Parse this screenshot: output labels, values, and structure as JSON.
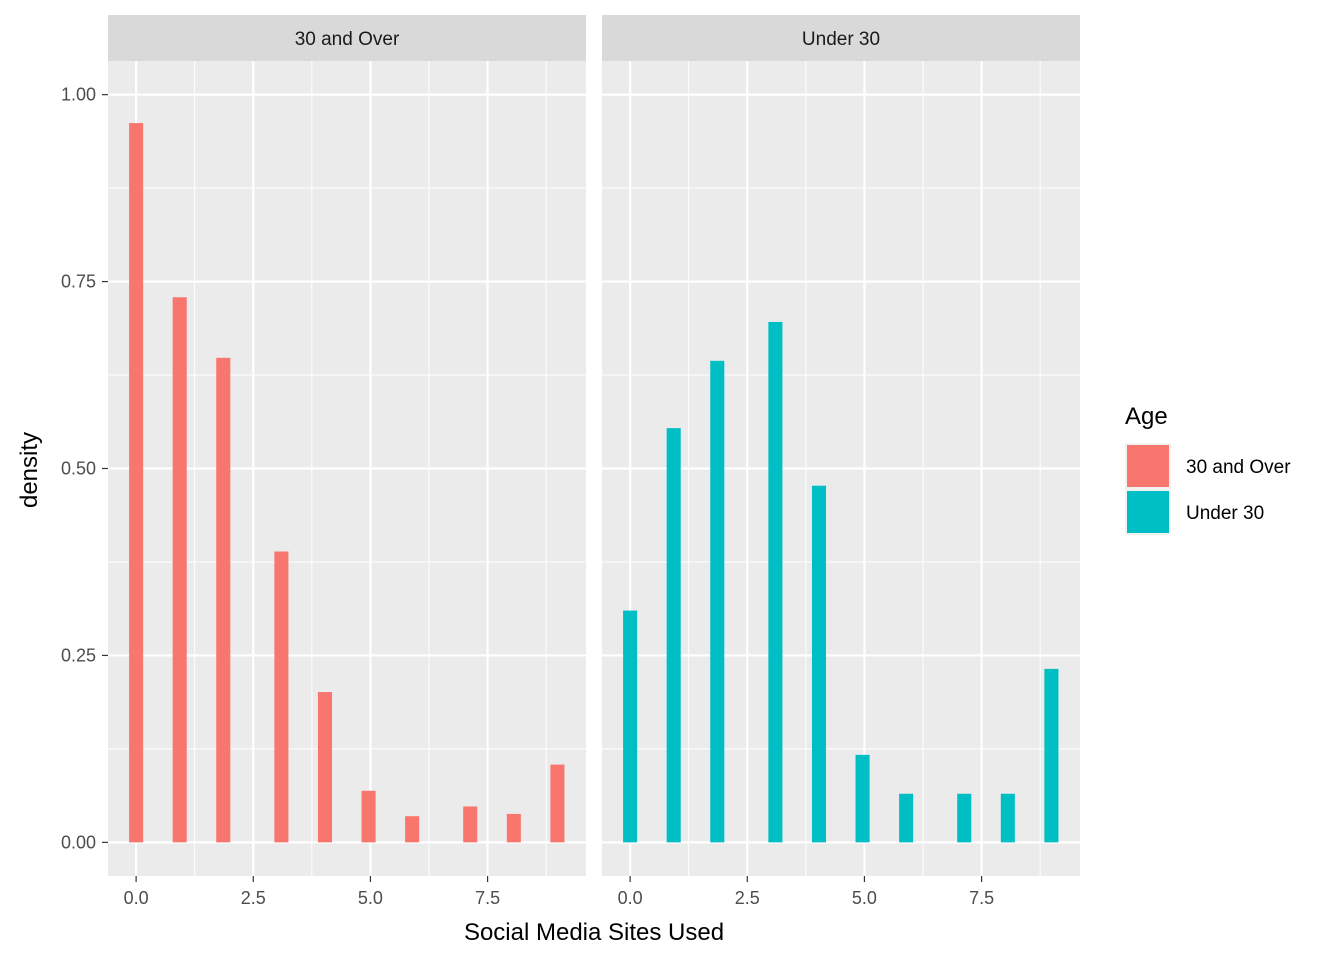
{
  "chart_data": {
    "type": "bar",
    "xlabel": "Social Media Sites Used",
    "ylabel": "density",
    "xlim": [
      -0.6,
      9.6
    ],
    "ylim": [
      -0.045,
      1.045
    ],
    "x_ticks": [
      0,
      2.5,
      5,
      7.5
    ],
    "x_tick_labels": [
      "0.0",
      "2.5",
      "5.0",
      "7.5"
    ],
    "y_ticks": [
      0,
      0.25,
      0.5,
      0.75,
      1.0
    ],
    "y_tick_labels": [
      "0.00",
      "0.25",
      "0.50",
      "0.75",
      "1.00"
    ],
    "bar_width": 0.3,
    "grid": true,
    "legend": {
      "title": "Age",
      "position": "right",
      "entries": [
        {
          "label": "30 and Over",
          "color": "#F8766D"
        },
        {
          "label": "Under 30",
          "color": "#00BFC4"
        }
      ]
    },
    "panels": [
      {
        "strip": "30 and Over",
        "color": "#F8766D",
        "x": [
          0,
          0.93,
          1.86,
          3.1,
          4.03,
          4.96,
          5.89,
          7.13,
          8.06,
          8.99
        ],
        "values": [
          0.962,
          0.729,
          0.648,
          0.389,
          0.201,
          0.069,
          0.035,
          0.048,
          0.038,
          0.104
        ]
      },
      {
        "strip": "Under 30",
        "color": "#00BFC4",
        "x": [
          0,
          0.93,
          1.86,
          3.1,
          4.03,
          4.96,
          5.89,
          7.13,
          8.06,
          8.99
        ],
        "values": [
          0.31,
          0.554,
          0.644,
          0.696,
          0.477,
          0.117,
          0.065,
          0.065,
          0.065,
          0.232
        ]
      }
    ]
  }
}
